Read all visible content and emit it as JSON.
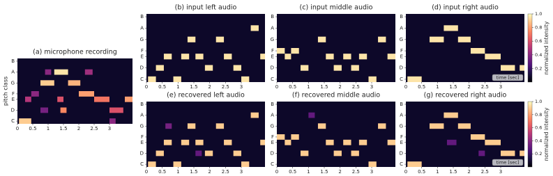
{
  "chart_data": [
    {
      "type": "heatmap",
      "title": "(a) microphone recording",
      "ylabel": "pitch class",
      "xlim": [
        0,
        3.75
      ],
      "xticks": [
        0,
        0.5,
        1,
        1.5,
        2,
        2.5,
        3
      ],
      "ylim": [
        -0.5,
        11.5
      ],
      "yticks": [
        {
          "value": 0,
          "label": "C"
        },
        {
          "value": 2,
          "label": "D"
        },
        {
          "value": 4,
          "label": "E"
        },
        {
          "value": 5,
          "label": "F"
        },
        {
          "value": 7,
          "label": "G"
        },
        {
          "value": 9,
          "label": "A"
        },
        {
          "value": 11,
          "label": "B"
        }
      ],
      "notes": {
        "start": [
          0.05,
          0.75,
          1.2,
          1.65,
          2.0,
          2.5,
          3.0,
          3.5,
          0.25,
          0.45,
          1.4,
          1.3,
          2.2,
          3.0,
          0.9,
          0.75
        ],
        "end": [
          0.45,
          1.2,
          1.65,
          2.05,
          2.5,
          3.0,
          3.45,
          3.75,
          0.45,
          0.7,
          1.6,
          1.5,
          2.45,
          3.2,
          1.1,
          1.0
        ],
        "pitch": [
          0,
          7,
          9,
          7,
          5,
          4,
          2,
          4,
          4,
          5,
          2,
          4,
          9,
          0,
          9,
          2
        ],
        "values": [
          0.9,
          0.9,
          0.95,
          0.85,
          0.8,
          0.7,
          0.6,
          0.8,
          0.5,
          0.4,
          0.75,
          0.6,
          0.45,
          0.4,
          0.4,
          0.35
        ]
      }
    },
    {
      "type": "heatmap",
      "title": "(b) input left audio",
      "xlim": [
        0,
        3.75
      ],
      "xticks": [
        0,
        0.5,
        1,
        1.5,
        2,
        2.5,
        3
      ],
      "ylim": [
        -0.5,
        11.5
      ],
      "yticks": [
        {
          "value": 0,
          "label": "C"
        },
        {
          "value": 2,
          "label": "D"
        },
        {
          "value": 4,
          "label": "E"
        },
        {
          "value": 5,
          "label": "F"
        },
        {
          "value": 7,
          "label": "G"
        },
        {
          "value": 9,
          "label": "A"
        },
        {
          "value": 11,
          "label": "B"
        }
      ],
      "notes": {
        "start": [
          0.05,
          0.3,
          0.55,
          0.85,
          1.1,
          1.3,
          1.55,
          1.85,
          2.2,
          2.45,
          2.75,
          3.0,
          3.3,
          3.6
        ],
        "end": [
          0.3,
          0.55,
          0.8,
          1.1,
          1.35,
          1.55,
          1.8,
          2.1,
          2.45,
          2.7,
          3.0,
          3.25,
          3.55,
          3.75
        ],
        "pitch": [
          0,
          2,
          4,
          0,
          4,
          7,
          4,
          2,
          7,
          4,
          2,
          0,
          9,
          4
        ],
        "values": [
          0.95,
          0.95,
          0.95,
          0.95,
          0.95,
          0.95,
          0.95,
          0.95,
          0.95,
          0.95,
          0.95,
          0.95,
          0.95,
          0.95
        ]
      }
    },
    {
      "type": "heatmap",
      "title": "(c) input middle audio",
      "xlim": [
        0,
        3.75
      ],
      "xticks": [
        0,
        0.5,
        1,
        1.5,
        2,
        2.5,
        3
      ],
      "ylim": [
        -0.5,
        11.5
      ],
      "yticks": [
        {
          "value": 0,
          "label": "C"
        },
        {
          "value": 2,
          "label": "D"
        },
        {
          "value": 4,
          "label": "E"
        },
        {
          "value": 5,
          "label": "F"
        },
        {
          "value": 7,
          "label": "G"
        },
        {
          "value": 9,
          "label": "A"
        },
        {
          "value": 11,
          "label": "B"
        }
      ],
      "notes": {
        "start": [
          0,
          0.25,
          0.45,
          0.75,
          1.3,
          1.55,
          1.8,
          2.1,
          2.35,
          2.6,
          2.9,
          3.2,
          3.5
        ],
        "end": [
          0.25,
          0.45,
          0.7,
          1.0,
          1.55,
          1.8,
          2.05,
          2.35,
          2.6,
          2.85,
          3.15,
          3.45,
          3.75
        ],
        "pitch": [
          5,
          4,
          5,
          2,
          7,
          4,
          2,
          4,
          2,
          4,
          0,
          7,
          4
        ],
        "values": [
          0.95,
          0.95,
          0.95,
          0.95,
          0.95,
          0.95,
          0.95,
          0.95,
          0.95,
          0.95,
          0.95,
          0.95,
          0.95
        ]
      }
    },
    {
      "type": "heatmap",
      "title": "(d) input right audio",
      "xlabel": "time [sec]",
      "xlim": [
        0,
        3.75
      ],
      "xticks": [
        0,
        0.5,
        1,
        1.5,
        2,
        2.5,
        3
      ],
      "ylim": [
        -0.5,
        11.5
      ],
      "yticks": [
        {
          "value": 0,
          "label": "C"
        },
        {
          "value": 2,
          "label": "D"
        },
        {
          "value": 4,
          "label": "E"
        },
        {
          "value": 5,
          "label": "F"
        },
        {
          "value": 7,
          "label": "G"
        },
        {
          "value": 9,
          "label": "A"
        },
        {
          "value": 11,
          "label": "B"
        }
      ],
      "notes": {
        "start": [
          0.05,
          0.75,
          1.2,
          1.65,
          2.05,
          2.5,
          3.0,
          3.6
        ],
        "end": [
          0.5,
          1.2,
          1.65,
          2.05,
          2.5,
          3.0,
          3.45,
          3.75
        ],
        "pitch": [
          0,
          7,
          9,
          7,
          5,
          4,
          2,
          2
        ],
        "values": [
          0.95,
          0.95,
          0.95,
          0.95,
          0.95,
          0.95,
          0.95,
          0.95
        ]
      },
      "colorbar": {
        "label": "normalized intensity",
        "clim": [
          0,
          1
        ],
        "ticks": [
          0.2,
          0.4,
          0.6,
          0.8,
          {
            "value": 1,
            "label": "1.0"
          }
        ]
      }
    },
    {
      "type": "heatmap",
      "title": "(e) recovered left audio",
      "xlim": [
        0,
        3.75
      ],
      "xticks": [
        0,
        0.5,
        1,
        1.5,
        2,
        2.5,
        3
      ],
      "ylim": [
        -0.5,
        11.5
      ],
      "yticks": [
        {
          "value": 0,
          "label": "C"
        },
        {
          "value": 2,
          "label": "D"
        },
        {
          "value": 4,
          "label": "E"
        },
        {
          "value": 5,
          "label": "F"
        },
        {
          "value": 7,
          "label": "G"
        },
        {
          "value": 9,
          "label": "A"
        },
        {
          "value": 11,
          "label": "B"
        }
      ],
      "notes": {
        "start": [
          0.05,
          0.3,
          0.55,
          0.85,
          1.1,
          1.3,
          1.55,
          1.85,
          2.2,
          2.45,
          2.75,
          3.0,
          3.3,
          3.6,
          0.6,
          1.55
        ],
        "end": [
          0.3,
          0.55,
          0.8,
          1.1,
          1.35,
          1.55,
          1.8,
          2.1,
          2.45,
          2.7,
          3.0,
          3.25,
          3.55,
          3.75,
          0.8,
          1.75
        ],
        "pitch": [
          0,
          2,
          4,
          0,
          4,
          7,
          4,
          2,
          7,
          4,
          2,
          0,
          9,
          4,
          7,
          2
        ],
        "values": [
          0.9,
          0.9,
          0.9,
          0.9,
          0.9,
          0.9,
          0.9,
          0.9,
          0.9,
          0.9,
          0.9,
          0.9,
          0.9,
          0.9,
          0.35,
          0.3
        ]
      }
    },
    {
      "type": "heatmap",
      "title": "(f) recovered middle audio",
      "xlim": [
        0,
        3.75
      ],
      "xticks": [
        0,
        0.5,
        1,
        1.5,
        2,
        2.5,
        3
      ],
      "ylim": [
        -0.5,
        11.5
      ],
      "yticks": [
        {
          "value": 0,
          "label": "C"
        },
        {
          "value": 2,
          "label": "D"
        },
        {
          "value": 4,
          "label": "E"
        },
        {
          "value": 5,
          "label": "F"
        },
        {
          "value": 7,
          "label": "G"
        },
        {
          "value": 9,
          "label": "A"
        },
        {
          "value": 11,
          "label": "B"
        }
      ],
      "notes": {
        "start": [
          0,
          0.25,
          0.45,
          0.75,
          1.3,
          1.55,
          1.8,
          2.1,
          2.35,
          2.6,
          2.9,
          3.2,
          3.5,
          1.0
        ],
        "end": [
          0.25,
          0.45,
          0.7,
          1.0,
          1.55,
          1.8,
          2.05,
          2.35,
          2.6,
          2.85,
          3.15,
          3.45,
          3.75,
          1.2
        ],
        "pitch": [
          5,
          4,
          5,
          2,
          7,
          4,
          2,
          4,
          2,
          4,
          0,
          7,
          4,
          9
        ],
        "values": [
          0.9,
          0.9,
          0.9,
          0.9,
          0.9,
          0.9,
          0.9,
          0.9,
          0.9,
          0.9,
          0.9,
          0.9,
          0.9,
          0.3
        ]
      }
    },
    {
      "type": "heatmap",
      "title": "(g) recovered right audio",
      "xlabel": "time [sec]",
      "xlim": [
        0,
        3.75
      ],
      "xticks": [
        0,
        0.5,
        1,
        1.5,
        2,
        2.5,
        3
      ],
      "ylim": [
        -0.5,
        11.5
      ],
      "yticks": [
        {
          "value": 0,
          "label": "C"
        },
        {
          "value": 2,
          "label": "D"
        },
        {
          "value": 4,
          "label": "E"
        },
        {
          "value": 5,
          "label": "F"
        },
        {
          "value": 7,
          "label": "G"
        },
        {
          "value": 9,
          "label": "A"
        },
        {
          "value": 11,
          "label": "B"
        }
      ],
      "notes": {
        "start": [
          0.05,
          0.75,
          1.2,
          1.65,
          2.05,
          2.5,
          3.0,
          3.6,
          1.3,
          2.3
        ],
        "end": [
          0.5,
          1.2,
          1.65,
          2.05,
          2.5,
          3.0,
          3.45,
          3.75,
          1.6,
          2.5
        ],
        "pitch": [
          0,
          7,
          9,
          7,
          5,
          4,
          2,
          2,
          4,
          2
        ],
        "values": [
          0.9,
          0.9,
          0.9,
          0.9,
          0.9,
          0.9,
          0.9,
          0.9,
          0.3,
          0.3
        ]
      },
      "colorbar": {
        "label": "normalized intensity",
        "clim": [
          0,
          1
        ],
        "ticks": [
          0.2,
          0.4,
          0.6,
          0.8,
          {
            "value": 1,
            "label": "1.0"
          }
        ]
      }
    }
  ]
}
